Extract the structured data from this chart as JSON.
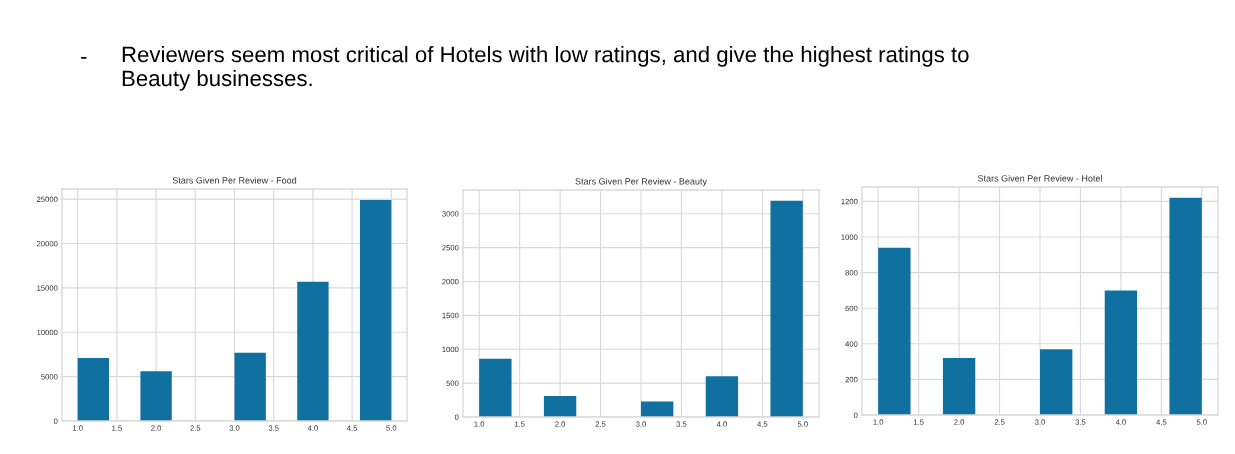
{
  "chart_data": [
    {
      "type": "histogram",
      "title": "Stars Given Per Review - Food",
      "annotations": [
        "-",
        "Reviewers seem most critical of Hotels with low ratings, and give the highest ratings to\nBeauty businesses."
      ],
      "bins": [
        1.0,
        1.4,
        1.8,
        2.2,
        2.6,
        3.0,
        3.4,
        3.8,
        4.2,
        4.6,
        5.0
      ],
      "values": [
        7100,
        0,
        5600,
        0,
        0,
        7700,
        0,
        15700,
        0,
        24900
      ],
      "color": "#1071a1",
      "xlim": [
        0.8,
        5.2
      ],
      "xticks": [
        {
          "value": 1,
          "label": "1.0"
        },
        1.5,
        {
          "value": 2,
          "label": "2.0"
        },
        2.5,
        {
          "value": 3,
          "label": "3.0"
        },
        3.5,
        {
          "value": 4,
          "label": "4.0"
        },
        4.5,
        {
          "value": 5,
          "label": "5.0"
        }
      ],
      "ylim": [
        0,
        26145
      ],
      "yticks": [
        0,
        5000,
        10000,
        15000,
        20000,
        25000
      ],
      "grid": true
    },
    {
      "type": "histogram",
      "title": "Stars Given Per Review - Beauty",
      "bins": [
        1.0,
        1.4,
        1.8,
        2.2,
        2.6,
        3.0,
        3.4,
        3.8,
        4.2,
        4.6,
        5.0
      ],
      "values": [
        860,
        0,
        310,
        0,
        0,
        230,
        0,
        600,
        0,
        3190
      ],
      "color": "#1071a1",
      "xlim": [
        0.8,
        5.2
      ],
      "xticks": [
        {
          "value": 1,
          "label": "1.0"
        },
        1.5,
        {
          "value": 2,
          "label": "2.0"
        },
        2.5,
        {
          "value": 3,
          "label": "3.0"
        },
        3.5,
        {
          "value": 4,
          "label": "4.0"
        },
        4.5,
        {
          "value": 5,
          "label": "5.0"
        }
      ],
      "ylim": [
        0,
        3350
      ],
      "yticks": [
        0,
        500,
        1000,
        1500,
        2000,
        2500,
        3000
      ],
      "grid": true
    },
    {
      "type": "histogram",
      "title": "Stars Given Per Review - Hotel",
      "bins": [
        1.0,
        1.4,
        1.8,
        2.2,
        2.6,
        3.0,
        3.4,
        3.8,
        4.2,
        4.6,
        5.0
      ],
      "values": [
        940,
        0,
        320,
        0,
        0,
        370,
        0,
        700,
        0,
        1220
      ],
      "color": "#1071a1",
      "xlim": [
        0.8,
        5.2
      ],
      "xticks": [
        {
          "value": 1,
          "label": "1.0"
        },
        1.5,
        {
          "value": 2,
          "label": "2.0"
        },
        2.5,
        {
          "value": 3,
          "label": "3.0"
        },
        3.5,
        {
          "value": 4,
          "label": "4.0"
        },
        4.5,
        {
          "value": 5,
          "label": "5.0"
        }
      ],
      "ylim": [
        0,
        1281
      ],
      "yticks": [
        0,
        200,
        400,
        600,
        800,
        1000,
        1200
      ],
      "grid": true
    }
  ]
}
